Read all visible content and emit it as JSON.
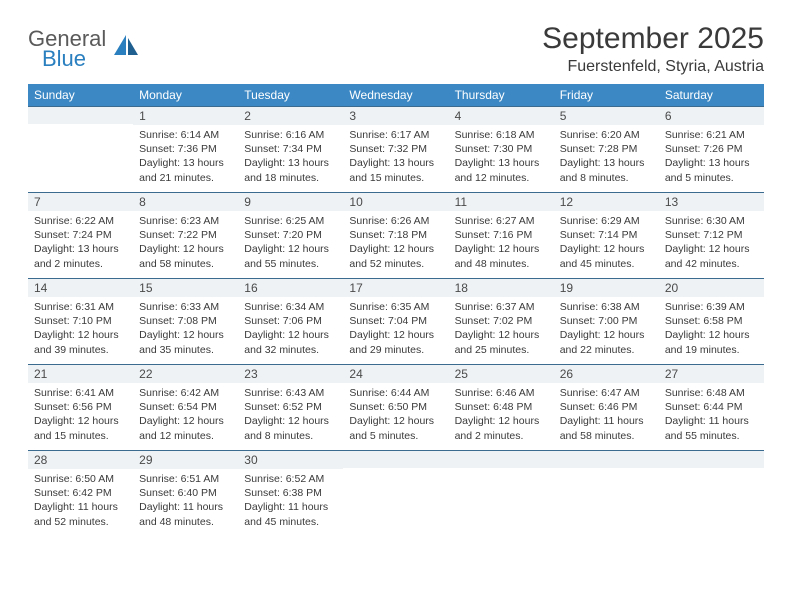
{
  "logo": {
    "line1": "General",
    "line2": "Blue"
  },
  "header": {
    "month_title": "September 2025",
    "location": "Fuerstenfeld, Styria, Austria"
  },
  "colors": {
    "header_bg": "#3b88c4",
    "header_text": "#ffffff",
    "daynum_bg": "#eef2f5",
    "border": "#3b6b8f",
    "logo_blue": "#2a7fbf"
  },
  "day_names": [
    "Sunday",
    "Monday",
    "Tuesday",
    "Wednesday",
    "Thursday",
    "Friday",
    "Saturday"
  ],
  "weeks": [
    [
      null,
      {
        "n": "1",
        "sr": "Sunrise: 6:14 AM",
        "ss": "Sunset: 7:36 PM",
        "d1": "Daylight: 13 hours",
        "d2": "and 21 minutes."
      },
      {
        "n": "2",
        "sr": "Sunrise: 6:16 AM",
        "ss": "Sunset: 7:34 PM",
        "d1": "Daylight: 13 hours",
        "d2": "and 18 minutes."
      },
      {
        "n": "3",
        "sr": "Sunrise: 6:17 AM",
        "ss": "Sunset: 7:32 PM",
        "d1": "Daylight: 13 hours",
        "d2": "and 15 minutes."
      },
      {
        "n": "4",
        "sr": "Sunrise: 6:18 AM",
        "ss": "Sunset: 7:30 PM",
        "d1": "Daylight: 13 hours",
        "d2": "and 12 minutes."
      },
      {
        "n": "5",
        "sr": "Sunrise: 6:20 AM",
        "ss": "Sunset: 7:28 PM",
        "d1": "Daylight: 13 hours",
        "d2": "and 8 minutes."
      },
      {
        "n": "6",
        "sr": "Sunrise: 6:21 AM",
        "ss": "Sunset: 7:26 PM",
        "d1": "Daylight: 13 hours",
        "d2": "and 5 minutes."
      }
    ],
    [
      {
        "n": "7",
        "sr": "Sunrise: 6:22 AM",
        "ss": "Sunset: 7:24 PM",
        "d1": "Daylight: 13 hours",
        "d2": "and 2 minutes."
      },
      {
        "n": "8",
        "sr": "Sunrise: 6:23 AM",
        "ss": "Sunset: 7:22 PM",
        "d1": "Daylight: 12 hours",
        "d2": "and 58 minutes."
      },
      {
        "n": "9",
        "sr": "Sunrise: 6:25 AM",
        "ss": "Sunset: 7:20 PM",
        "d1": "Daylight: 12 hours",
        "d2": "and 55 minutes."
      },
      {
        "n": "10",
        "sr": "Sunrise: 6:26 AM",
        "ss": "Sunset: 7:18 PM",
        "d1": "Daylight: 12 hours",
        "d2": "and 52 minutes."
      },
      {
        "n": "11",
        "sr": "Sunrise: 6:27 AM",
        "ss": "Sunset: 7:16 PM",
        "d1": "Daylight: 12 hours",
        "d2": "and 48 minutes."
      },
      {
        "n": "12",
        "sr": "Sunrise: 6:29 AM",
        "ss": "Sunset: 7:14 PM",
        "d1": "Daylight: 12 hours",
        "d2": "and 45 minutes."
      },
      {
        "n": "13",
        "sr": "Sunrise: 6:30 AM",
        "ss": "Sunset: 7:12 PM",
        "d1": "Daylight: 12 hours",
        "d2": "and 42 minutes."
      }
    ],
    [
      {
        "n": "14",
        "sr": "Sunrise: 6:31 AM",
        "ss": "Sunset: 7:10 PM",
        "d1": "Daylight: 12 hours",
        "d2": "and 39 minutes."
      },
      {
        "n": "15",
        "sr": "Sunrise: 6:33 AM",
        "ss": "Sunset: 7:08 PM",
        "d1": "Daylight: 12 hours",
        "d2": "and 35 minutes."
      },
      {
        "n": "16",
        "sr": "Sunrise: 6:34 AM",
        "ss": "Sunset: 7:06 PM",
        "d1": "Daylight: 12 hours",
        "d2": "and 32 minutes."
      },
      {
        "n": "17",
        "sr": "Sunrise: 6:35 AM",
        "ss": "Sunset: 7:04 PM",
        "d1": "Daylight: 12 hours",
        "d2": "and 29 minutes."
      },
      {
        "n": "18",
        "sr": "Sunrise: 6:37 AM",
        "ss": "Sunset: 7:02 PM",
        "d1": "Daylight: 12 hours",
        "d2": "and 25 minutes."
      },
      {
        "n": "19",
        "sr": "Sunrise: 6:38 AM",
        "ss": "Sunset: 7:00 PM",
        "d1": "Daylight: 12 hours",
        "d2": "and 22 minutes."
      },
      {
        "n": "20",
        "sr": "Sunrise: 6:39 AM",
        "ss": "Sunset: 6:58 PM",
        "d1": "Daylight: 12 hours",
        "d2": "and 19 minutes."
      }
    ],
    [
      {
        "n": "21",
        "sr": "Sunrise: 6:41 AM",
        "ss": "Sunset: 6:56 PM",
        "d1": "Daylight: 12 hours",
        "d2": "and 15 minutes."
      },
      {
        "n": "22",
        "sr": "Sunrise: 6:42 AM",
        "ss": "Sunset: 6:54 PM",
        "d1": "Daylight: 12 hours",
        "d2": "and 12 minutes."
      },
      {
        "n": "23",
        "sr": "Sunrise: 6:43 AM",
        "ss": "Sunset: 6:52 PM",
        "d1": "Daylight: 12 hours",
        "d2": "and 8 minutes."
      },
      {
        "n": "24",
        "sr": "Sunrise: 6:44 AM",
        "ss": "Sunset: 6:50 PM",
        "d1": "Daylight: 12 hours",
        "d2": "and 5 minutes."
      },
      {
        "n": "25",
        "sr": "Sunrise: 6:46 AM",
        "ss": "Sunset: 6:48 PM",
        "d1": "Daylight: 12 hours",
        "d2": "and 2 minutes."
      },
      {
        "n": "26",
        "sr": "Sunrise: 6:47 AM",
        "ss": "Sunset: 6:46 PM",
        "d1": "Daylight: 11 hours",
        "d2": "and 58 minutes."
      },
      {
        "n": "27",
        "sr": "Sunrise: 6:48 AM",
        "ss": "Sunset: 6:44 PM",
        "d1": "Daylight: 11 hours",
        "d2": "and 55 minutes."
      }
    ],
    [
      {
        "n": "28",
        "sr": "Sunrise: 6:50 AM",
        "ss": "Sunset: 6:42 PM",
        "d1": "Daylight: 11 hours",
        "d2": "and 52 minutes."
      },
      {
        "n": "29",
        "sr": "Sunrise: 6:51 AM",
        "ss": "Sunset: 6:40 PM",
        "d1": "Daylight: 11 hours",
        "d2": "and 48 minutes."
      },
      {
        "n": "30",
        "sr": "Sunrise: 6:52 AM",
        "ss": "Sunset: 6:38 PM",
        "d1": "Daylight: 11 hours",
        "d2": "and 45 minutes."
      },
      null,
      null,
      null,
      null
    ]
  ]
}
